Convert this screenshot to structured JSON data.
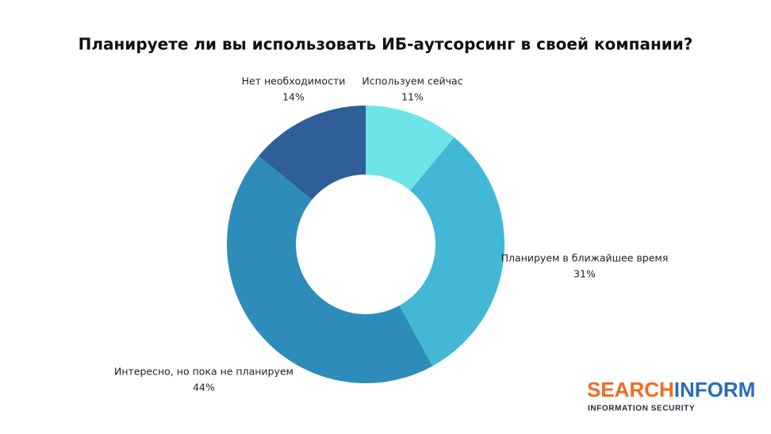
{
  "chart_data": {
    "type": "donut",
    "title": "Планируете ли вы использовать ИБ-аутсорсинг в своей компании?",
    "categories": [
      "Используем сейчас",
      "Планируем в ближайшее время",
      "Интересно, но пока не планируем",
      "Нет необходимости"
    ],
    "values": [
      11,
      31,
      44,
      14
    ],
    "value_labels": [
      "11%",
      "31%",
      "44%",
      "14%"
    ],
    "colors": [
      "#6de4e8",
      "#42b8d6",
      "#2e8cbb",
      "#2f5e98"
    ]
  },
  "logo": {
    "brand_first": "SEARCH",
    "brand_second": "INFORM",
    "tagline": "INFORMATION SECURITY"
  }
}
